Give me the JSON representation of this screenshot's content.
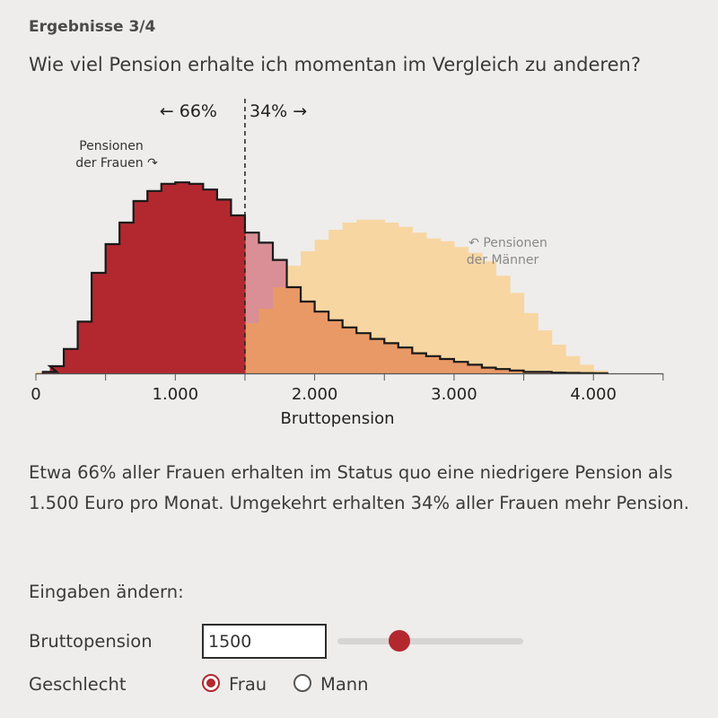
{
  "header": {
    "step": "Ergebnisse 3/4",
    "question": "Wie viel Pension erhalte ich momentan im Vergleich zu anderen?"
  },
  "chart_data": {
    "type": "area",
    "xlabel": "Bruttopension",
    "ylabel": "",
    "xlim": [
      0,
      4500
    ],
    "x_ticks": [
      0,
      1000,
      2000,
      3000,
      4000
    ],
    "x_tick_labels": [
      "0",
      "1.000",
      "2.000",
      "3.000",
      "4.000"
    ],
    "bin_width": 100,
    "threshold": 1500,
    "split_labels": {
      "left": "← 66%",
      "right": "34% →"
    },
    "annotations": {
      "women": [
        "Pensionen",
        "der Frauen ↷"
      ],
      "men": [
        "↶ Pensionen",
        "der Männer"
      ]
    },
    "series": [
      {
        "key": "women",
        "bins_start": [
          50,
          100,
          200,
          300,
          400,
          500,
          600,
          700,
          800,
          900,
          1000,
          1100,
          1200,
          1300,
          1400,
          1500,
          1600,
          1700,
          1800,
          1900,
          2000,
          2100,
          2200,
          2300,
          2400,
          2500,
          2600,
          2700,
          2800,
          2900,
          3000,
          3100,
          3200,
          3300,
          3400,
          3500,
          3600,
          3700,
          3800,
          3900,
          4000
        ],
        "values": [
          1,
          5,
          17,
          36,
          70,
          90,
          105,
          120,
          127,
          132,
          133,
          132,
          128,
          121,
          110,
          98,
          91,
          79,
          60,
          50,
          43,
          37,
          32,
          28,
          24,
          21,
          18,
          14,
          12,
          10,
          8,
          6,
          4,
          3,
          2,
          1,
          1,
          0.5,
          0.3,
          0.2,
          0.1
        ]
      },
      {
        "key": "men",
        "bins_start": [
          0,
          100,
          200,
          300,
          400,
          500,
          600,
          700,
          800,
          900,
          1000,
          1100,
          1200,
          1300,
          1400,
          1500,
          1600,
          1700,
          1800,
          1900,
          2000,
          2100,
          2200,
          2300,
          2400,
          2500,
          2600,
          2700,
          2800,
          2900,
          3000,
          3100,
          3200,
          3300,
          3400,
          3500,
          3600,
          3700,
          3800,
          3900,
          4000
        ],
        "values": [
          1,
          2,
          3,
          4,
          5,
          7,
          9,
          11,
          13,
          15,
          18,
          20,
          23,
          26,
          29,
          35,
          45,
          60,
          75,
          85,
          93,
          100,
          105,
          107,
          107,
          105,
          102,
          98,
          94,
          92,
          88,
          84,
          78,
          68,
          56,
          42,
          30,
          20,
          12,
          6,
          2
        ]
      }
    ],
    "colors": {
      "women_fill": "#b3282f",
      "women_outline": "#1a1a1a",
      "women_faded": "#d98f95",
      "men_fill": "#f8d6a2",
      "overlap_fill": "#e89966"
    }
  },
  "explanation": "Etwa 66% aller Frauen erhalten im Status quo eine niedrigere Pension als 1.500 Euro pro Monat. Umgekehrt erhalten 34% aller Frauen mehr Pension.",
  "controls": {
    "heading": "Eingaben ändern:",
    "pension_label": "Bruttopension",
    "pension_value": "1500",
    "slider": {
      "value": 1500,
      "min": 0,
      "max": 4500
    },
    "gender_label": "Geschlecht",
    "options": [
      "Frau",
      "Mann"
    ],
    "selected": "Frau"
  }
}
